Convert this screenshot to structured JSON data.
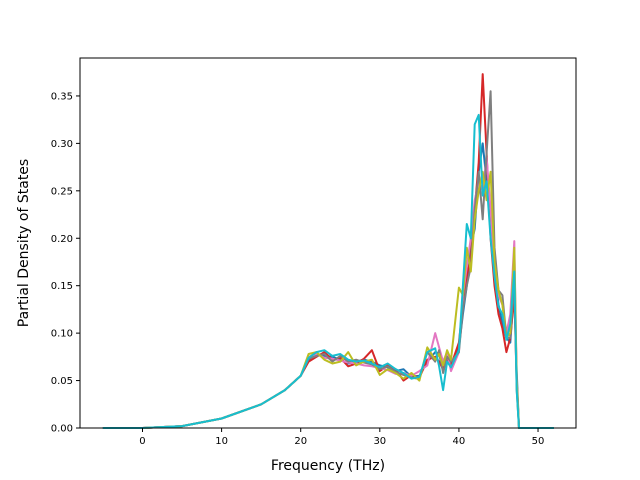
{
  "chart_data": {
    "type": "line",
    "xlabel": "Frequency (THz)",
    "ylabel": "Partial Density of States",
    "xlim": [
      -7.9,
      54.8
    ],
    "ylim": [
      0.0,
      0.39
    ],
    "xticks": [
      0,
      10,
      20,
      30,
      40,
      50
    ],
    "yticks": [
      0.0,
      0.05,
      0.1,
      0.15,
      0.2,
      0.25,
      0.3,
      0.35
    ],
    "ytick_labels": [
      "0.00",
      "0.05",
      "0.10",
      "0.15",
      "0.20",
      "0.25",
      "0.30",
      "0.35"
    ],
    "grid": false,
    "series": [
      {
        "color": "#1f77b4",
        "x": [
          -5.0,
          0.0,
          5.0,
          10.0,
          15.0,
          18.0,
          20.0,
          21.0,
          22.0,
          23.0,
          24.0,
          25.0,
          26.0,
          27.0,
          28.0,
          29.0,
          30.0,
          31.0,
          32.0,
          33.0,
          34.0,
          35.0,
          36.0,
          37.0,
          37.5,
          38.0,
          38.5,
          39.0,
          40.0,
          40.5,
          41.0,
          41.5,
          42.0,
          42.5,
          43.0,
          43.5,
          44.0,
          44.5,
          45.0,
          45.5,
          46.0,
          46.5,
          47.0,
          47.3,
          47.6,
          48.0,
          52.0
        ],
        "y": [
          0.0,
          0.0,
          0.002,
          0.01,
          0.025,
          0.04,
          0.055,
          0.072,
          0.078,
          0.076,
          0.075,
          0.072,
          0.068,
          0.07,
          0.072,
          0.07,
          0.066,
          0.064,
          0.06,
          0.062,
          0.054,
          0.055,
          0.07,
          0.08,
          0.078,
          0.06,
          0.078,
          0.065,
          0.085,
          0.12,
          0.15,
          0.19,
          0.21,
          0.27,
          0.3,
          0.26,
          0.22,
          0.17,
          0.13,
          0.11,
          0.095,
          0.09,
          0.15,
          0.06,
          0.0,
          0.0,
          0.0
        ]
      },
      {
        "color": "#d62728",
        "x": [
          -5.0,
          0.0,
          5.0,
          10.0,
          15.0,
          18.0,
          20.0,
          21.0,
          22.0,
          23.0,
          24.0,
          25.0,
          26.0,
          27.0,
          28.0,
          29.0,
          30.0,
          31.0,
          32.0,
          33.0,
          34.0,
          35.0,
          36.0,
          37.0,
          37.5,
          38.0,
          38.5,
          39.0,
          40.0,
          40.5,
          41.0,
          41.5,
          42.0,
          42.5,
          43.0,
          43.5,
          44.0,
          44.5,
          45.0,
          45.5,
          46.0,
          46.5,
          47.0,
          47.3,
          47.6,
          48.0,
          52.0
        ],
        "y": [
          0.0,
          0.0,
          0.002,
          0.01,
          0.025,
          0.04,
          0.055,
          0.07,
          0.075,
          0.08,
          0.072,
          0.074,
          0.065,
          0.068,
          0.073,
          0.082,
          0.06,
          0.066,
          0.062,
          0.05,
          0.056,
          0.053,
          0.072,
          0.075,
          0.07,
          0.062,
          0.072,
          0.066,
          0.09,
          0.13,
          0.16,
          0.18,
          0.23,
          0.28,
          0.373,
          0.29,
          0.2,
          0.15,
          0.12,
          0.105,
          0.08,
          0.095,
          0.14,
          0.05,
          0.0,
          0.0,
          0.0
        ]
      },
      {
        "color": "#e377c2",
        "x": [
          -5.0,
          0.0,
          5.0,
          10.0,
          15.0,
          18.0,
          20.0,
          21.0,
          22.0,
          23.0,
          24.0,
          25.0,
          26.0,
          27.0,
          28.0,
          29.0,
          30.0,
          31.0,
          32.0,
          33.0,
          34.0,
          35.0,
          36.0,
          37.0,
          37.5,
          38.0,
          38.5,
          39.0,
          40.0,
          40.5,
          41.0,
          41.5,
          42.0,
          42.5,
          43.0,
          43.5,
          44.0,
          44.5,
          45.0,
          45.5,
          46.0,
          46.5,
          47.0,
          47.3,
          47.6,
          48.0,
          52.0
        ],
        "y": [
          0.0,
          0.0,
          0.002,
          0.01,
          0.025,
          0.04,
          0.055,
          0.075,
          0.078,
          0.074,
          0.073,
          0.071,
          0.069,
          0.068,
          0.066,
          0.065,
          0.063,
          0.061,
          0.057,
          0.058,
          0.055,
          0.06,
          0.066,
          0.1,
          0.085,
          0.07,
          0.08,
          0.06,
          0.08,
          0.14,
          0.17,
          0.2,
          0.24,
          0.26,
          0.25,
          0.285,
          0.23,
          0.165,
          0.14,
          0.13,
          0.1,
          0.12,
          0.197,
          0.05,
          0.0,
          0.0,
          0.0
        ]
      },
      {
        "color": "#7f7f7f",
        "x": [
          -5.0,
          0.0,
          5.0,
          10.0,
          15.0,
          18.0,
          20.0,
          21.0,
          22.0,
          23.0,
          24.0,
          25.0,
          26.0,
          27.0,
          28.0,
          29.0,
          30.0,
          31.0,
          32.0,
          33.0,
          34.0,
          35.0,
          36.0,
          37.0,
          37.5,
          38.0,
          38.5,
          39.0,
          40.0,
          40.5,
          41.0,
          41.5,
          42.0,
          42.5,
          43.0,
          43.5,
          44.0,
          44.5,
          45.0,
          45.5,
          46.0,
          46.5,
          47.0,
          47.3,
          47.6,
          48.0,
          52.0
        ],
        "y": [
          0.0,
          0.0,
          0.002,
          0.01,
          0.025,
          0.04,
          0.055,
          0.073,
          0.076,
          0.078,
          0.07,
          0.076,
          0.07,
          0.072,
          0.069,
          0.067,
          0.062,
          0.065,
          0.059,
          0.056,
          0.053,
          0.052,
          0.08,
          0.07,
          0.082,
          0.058,
          0.075,
          0.07,
          0.08,
          0.125,
          0.15,
          0.17,
          0.23,
          0.27,
          0.22,
          0.29,
          0.355,
          0.19,
          0.145,
          0.14,
          0.095,
          0.095,
          0.155,
          0.04,
          0.0,
          0.0,
          0.0
        ]
      },
      {
        "color": "#bcbd22",
        "x": [
          -5.0,
          0.0,
          5.0,
          10.0,
          15.0,
          18.0,
          20.0,
          21.0,
          22.0,
          23.0,
          24.0,
          25.0,
          26.0,
          27.0,
          28.0,
          29.0,
          30.0,
          31.0,
          32.0,
          33.0,
          34.0,
          35.0,
          36.0,
          37.0,
          37.5,
          38.0,
          38.5,
          39.0,
          40.0,
          40.5,
          41.0,
          41.5,
          42.0,
          42.5,
          43.0,
          43.5,
          44.0,
          44.5,
          45.0,
          45.5,
          46.0,
          46.5,
          47.0,
          47.3,
          47.6,
          48.0,
          52.0
        ],
        "y": [
          0.0,
          0.0,
          0.002,
          0.01,
          0.025,
          0.04,
          0.055,
          0.078,
          0.08,
          0.072,
          0.068,
          0.07,
          0.08,
          0.066,
          0.07,
          0.072,
          0.056,
          0.062,
          0.058,
          0.052,
          0.058,
          0.05,
          0.085,
          0.072,
          0.078,
          0.066,
          0.082,
          0.072,
          0.148,
          0.14,
          0.19,
          0.165,
          0.22,
          0.25,
          0.27,
          0.24,
          0.27,
          0.175,
          0.145,
          0.13,
          0.095,
          0.1,
          0.19,
          0.05,
          0.0,
          0.0,
          0.0
        ]
      },
      {
        "color": "#17becf",
        "x": [
          -5.0,
          0.0,
          5.0,
          10.0,
          15.0,
          18.0,
          20.0,
          21.0,
          22.0,
          23.0,
          24.0,
          25.0,
          26.0,
          27.0,
          28.0,
          29.0,
          30.0,
          31.0,
          32.0,
          33.0,
          34.0,
          35.0,
          36.0,
          37.0,
          37.5,
          38.0,
          38.5,
          39.0,
          40.0,
          40.5,
          41.0,
          41.5,
          42.0,
          42.5,
          43.0,
          43.5,
          44.0,
          44.5,
          45.0,
          45.5,
          46.0,
          46.5,
          47.0,
          47.3,
          47.6,
          48.0,
          52.0
        ],
        "y": [
          0.0,
          0.0,
          0.002,
          0.01,
          0.025,
          0.04,
          0.055,
          0.074,
          0.08,
          0.082,
          0.076,
          0.078,
          0.072,
          0.07,
          0.071,
          0.068,
          0.064,
          0.068,
          0.062,
          0.058,
          0.052,
          0.054,
          0.08,
          0.084,
          0.065,
          0.04,
          0.07,
          0.064,
          0.082,
          0.15,
          0.215,
          0.2,
          0.32,
          0.33,
          0.245,
          0.26,
          0.2,
          0.16,
          0.128,
          0.12,
          0.093,
          0.11,
          0.165,
          0.04,
          0.0,
          0.0,
          0.0
        ]
      }
    ]
  }
}
